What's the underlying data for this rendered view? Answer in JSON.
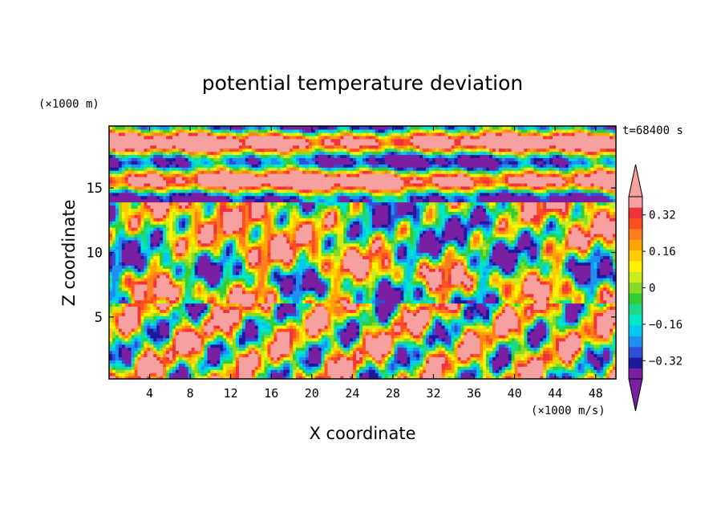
{
  "chart_data": {
    "type": "heatmap",
    "title": "potential temperature deviation",
    "xlabel": "X coordinate",
    "ylabel": "Z coordinate",
    "x_units": "(×1000 m/s)",
    "y_units": "(×1000 m)",
    "time_label": "t=68400 s",
    "xlim": [
      0,
      50
    ],
    "ylim": [
      0.2,
      19.8
    ],
    "x_ticks": [
      4,
      8,
      12,
      16,
      20,
      24,
      28,
      32,
      36,
      40,
      44,
      48
    ],
    "y_ticks": [
      5,
      10,
      15
    ],
    "colorbar": {
      "bounds": [
        -0.4,
        -0.36,
        -0.32,
        -0.28,
        -0.24,
        -0.2,
        -0.16,
        -0.12,
        -0.08,
        -0.04,
        0,
        0.04,
        0.08,
        0.12,
        0.16,
        0.2,
        0.24,
        0.28,
        0.32,
        0.36,
        0.4
      ],
      "colors": [
        "#7a1fa2",
        "#1c1a9c",
        "#2e4fd6",
        "#1f8ff2",
        "#00c9f0",
        "#00e8c8",
        "#1cd98a",
        "#33cc33",
        "#8ad926",
        "#c8ec1c",
        "#fff200",
        "#ffcc00",
        "#ffa500",
        "#ff7f1e",
        "#ff4f1e",
        "#f0323c",
        "#f7a0a0"
      ],
      "tick_labels": [
        "0.32",
        "0.16",
        "0",
        "−0.16",
        "−0.32"
      ],
      "tick_values": [
        0.32,
        0.16,
        0,
        -0.16,
        -0.32
      ],
      "under_color": "#7a1fa2",
      "over_color": "#f7a0a0"
    }
  }
}
